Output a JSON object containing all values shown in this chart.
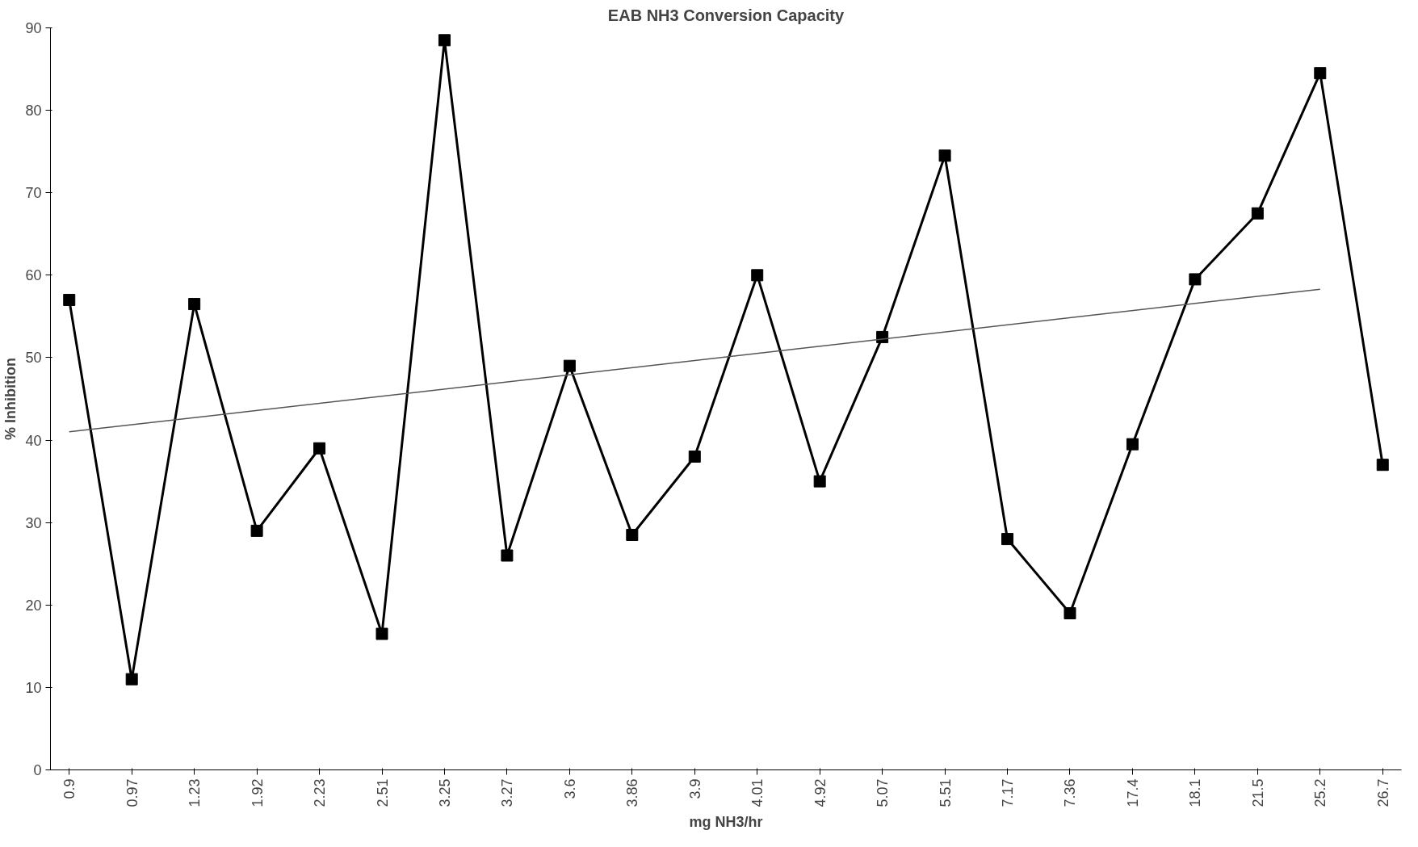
{
  "chart_data": {
    "type": "line",
    "title": "EAB NH3 Conversion Capacity",
    "xlabel": "mg NH3/hr",
    "ylabel": "% Inhibition",
    "categories": [
      "0.9",
      "0.97",
      "1.23",
      "1.92",
      "2.23",
      "2.51",
      "3.25",
      "3.27",
      "3.6",
      "3.86",
      "3.9",
      "4.01",
      "4.92",
      "5.07",
      "5.51",
      "7.17",
      "7.36",
      "17.4",
      "18.1",
      "21.5",
      "25.2",
      "26.7"
    ],
    "series": [
      {
        "color": "#000000",
        "marker": "square",
        "values": [
          57,
          11,
          56.5,
          29,
          39,
          16.5,
          88.5,
          26,
          49,
          28.5,
          38,
          60,
          35,
          52.5,
          74.5,
          28,
          19,
          39.5,
          59.5,
          67.5,
          84.5,
          37
        ]
      },
      {
        "type": "line",
        "color": "#555555",
        "marker": "none",
        "x": [
          "0.9",
          "25.2"
        ],
        "values": [
          41,
          58.3
        ]
      }
    ],
    "ylim": [
      0,
      90
    ],
    "yticks": [
      0,
      10,
      20,
      30,
      40,
      50,
      60,
      70,
      80,
      90
    ],
    "grid": false
  }
}
